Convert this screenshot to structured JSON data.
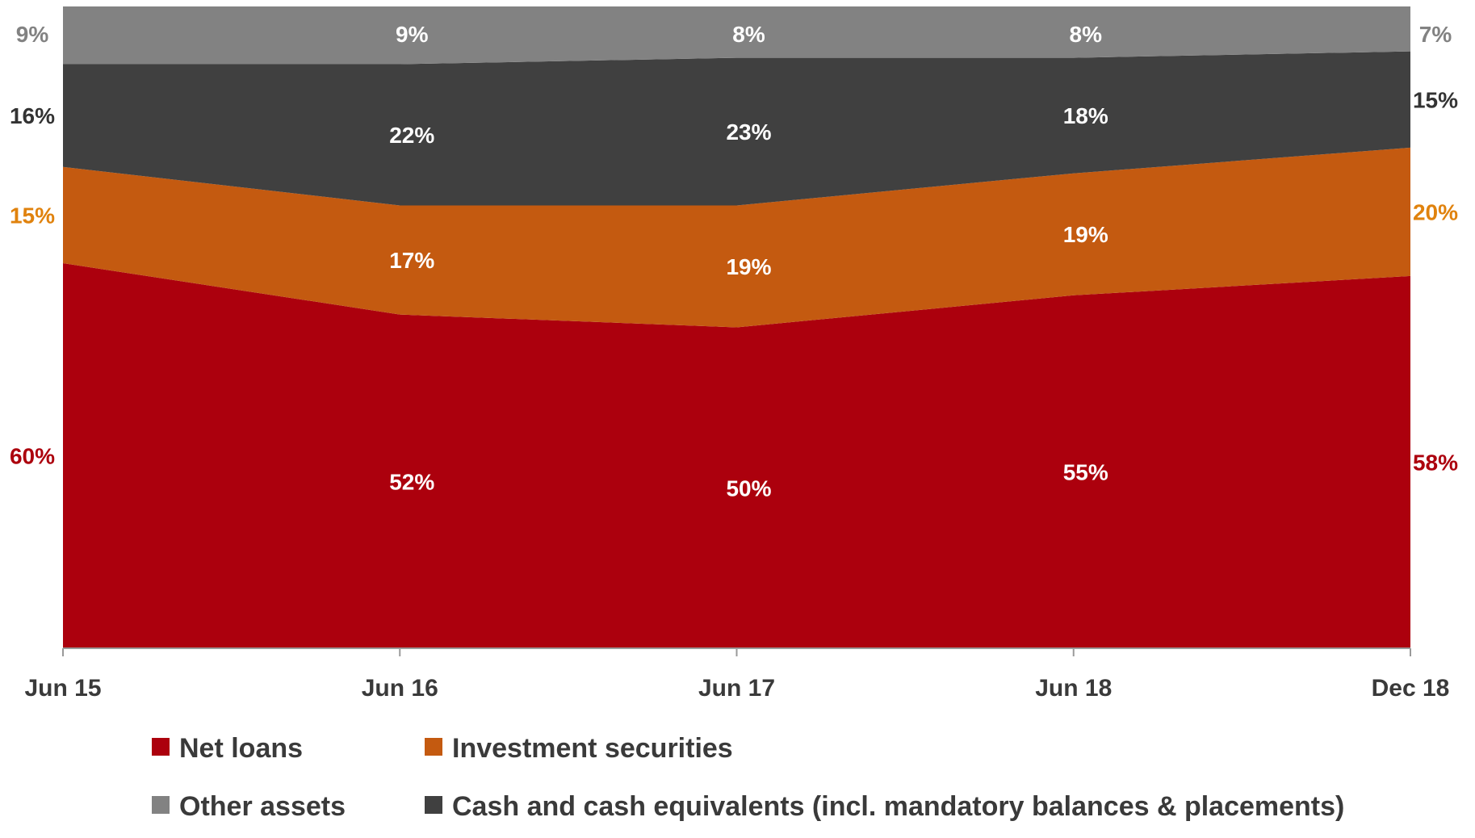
{
  "chart_data": {
    "type": "area",
    "stacked": true,
    "categories": [
      "Jun 15",
      "Jun 16",
      "Jun 17",
      "Jun 18",
      "Dec 18"
    ],
    "ylim": [
      0,
      100
    ],
    "grid": false,
    "legend_position": "bottom",
    "series": [
      {
        "name": "Net loans",
        "values": [
          60,
          52,
          50,
          55,
          58
        ],
        "labels": [
          "60%",
          "52%",
          "50%",
          "55%",
          "58%"
        ],
        "color": "#ac000d"
      },
      {
        "name": "Investment securities",
        "values": [
          15,
          17,
          19,
          19,
          20
        ],
        "labels": [
          "15%",
          "17%",
          "19%",
          "19%",
          "20%"
        ],
        "color": "#c45a10"
      },
      {
        "name": "Cash and cash equivalents (incl. mandatory balances & placements)",
        "values": [
          16,
          22,
          23,
          18,
          15
        ],
        "labels": [
          "16%",
          "22%",
          "23%",
          "18%",
          "15%"
        ],
        "color": "#404040"
      },
      {
        "name": "Other assets",
        "values": [
          9,
          9,
          8,
          8,
          7
        ],
        "labels": [
          "9%",
          "9%",
          "8%",
          "8%",
          "7%"
        ],
        "color": "#828282"
      }
    ],
    "edge_label_colors": {
      "Net loans": "#ac000d",
      "Investment securities": "#e0820d",
      "Cash and cash equivalents (incl. mandatory balances & placements)": "#333333",
      "Other assets": "#828282"
    },
    "inner_label_color": "#ffffff",
    "legend_order": [
      "Net loans",
      "Investment securities",
      "Other assets",
      "Cash and cash equivalents (incl. mandatory balances & placements)"
    ]
  }
}
